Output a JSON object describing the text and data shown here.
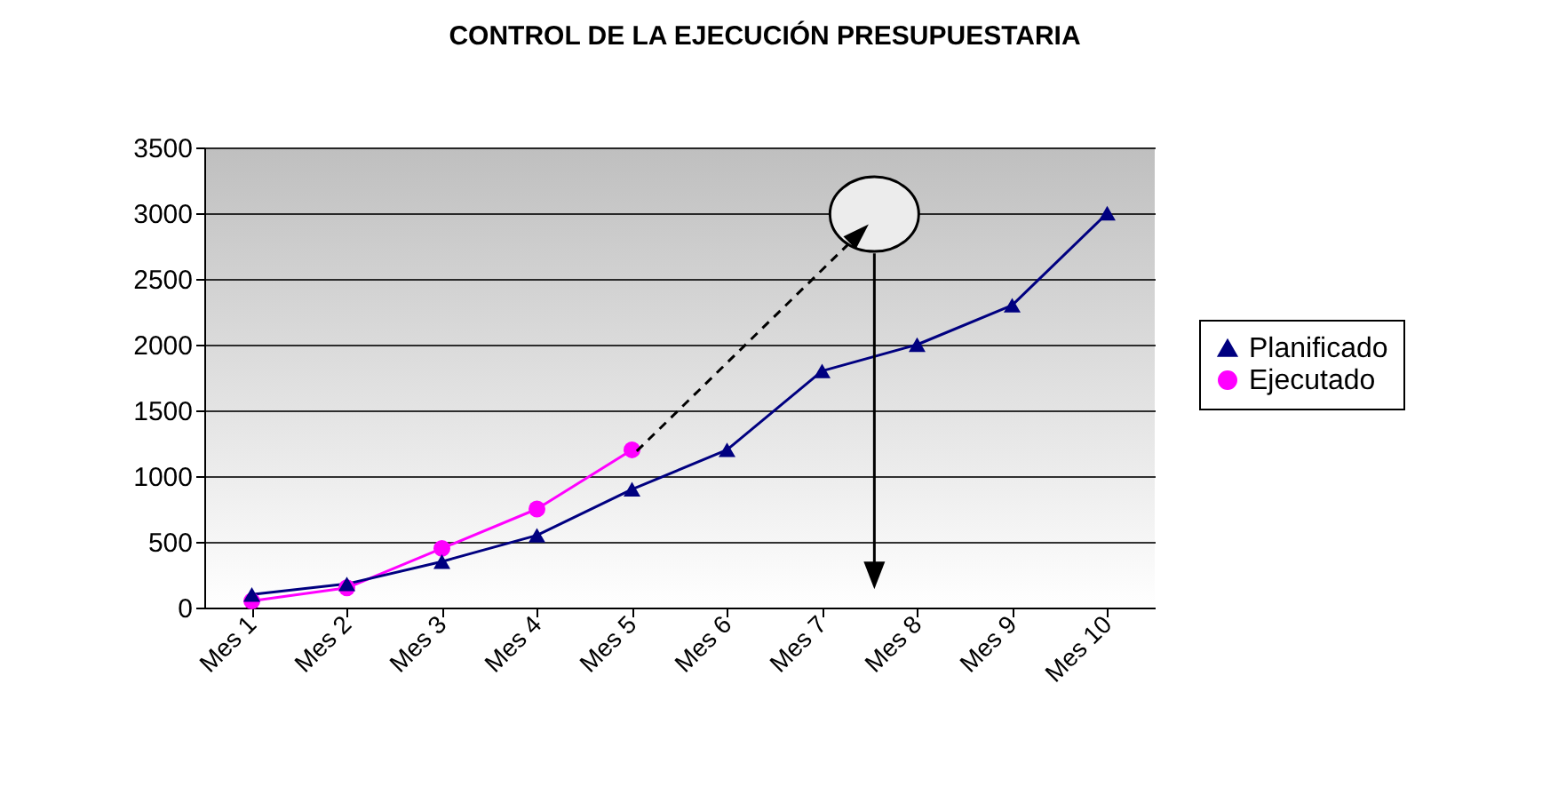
{
  "chart_data": {
    "type": "line",
    "title": "CONTROL DE LA EJECUCIÓN PRESUPUESTARIA",
    "categories": [
      "Mes 1",
      "Mes 2",
      "Mes 3",
      "Mes 4",
      "Mes 5",
      "Mes 6",
      "Mes 7",
      "Mes 8",
      "Mes 9",
      "Mes 10"
    ],
    "series": [
      {
        "name": "Planificado",
        "color": "#000080",
        "marker": "triangle",
        "values": [
          100,
          180,
          350,
          550,
          900,
          1200,
          1800,
          2000,
          2300,
          3000
        ]
      },
      {
        "name": "Ejecutado",
        "color": "#ff00ff",
        "marker": "circle",
        "values": [
          50,
          150,
          450,
          750,
          1200,
          null,
          null,
          null,
          null,
          null
        ]
      }
    ],
    "ylim": [
      0,
      3500
    ],
    "yticks": [
      0,
      500,
      1000,
      1500,
      2000,
      2500,
      3000,
      3500
    ],
    "grid": "y",
    "legend": "right",
    "line_style": "solid"
  }
}
